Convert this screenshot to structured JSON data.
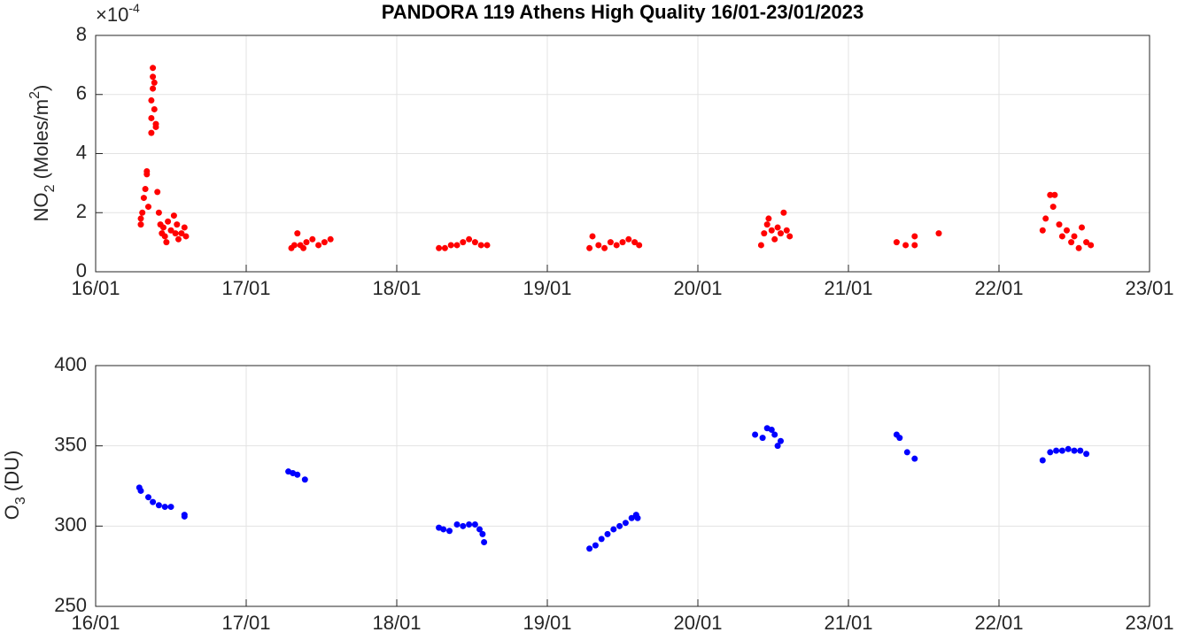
{
  "chart_data": [
    {
      "type": "scatter",
      "title": "PANDORA 119 Athens High Quality 16/01-23/01/2023",
      "multiplier": [
        "×10",
        "-4"
      ],
      "ylabel": [
        "NO",
        "2",
        " (Moles/m",
        "2",
        ")"
      ],
      "color": "#ff0000",
      "grid": true,
      "xlim": [
        16,
        23
      ],
      "xticks": [
        {
          "value": 16,
          "label": "16/01"
        },
        {
          "value": 17,
          "label": "17/01"
        },
        {
          "value": 18,
          "label": "18/01"
        },
        {
          "value": 19,
          "label": "19/01"
        },
        {
          "value": 20,
          "label": "20/01"
        },
        {
          "value": 21,
          "label": "21/01"
        },
        {
          "value": 22,
          "label": "22/01"
        },
        {
          "value": 23,
          "label": "23/01"
        }
      ],
      "ylim": [
        0,
        8
      ],
      "yticks": [
        0,
        2,
        4,
        6,
        8
      ],
      "x": [
        16.3,
        16.3,
        16.31,
        16.32,
        16.33,
        16.34,
        16.34,
        16.35,
        16.37,
        16.37,
        16.37,
        16.38,
        16.38,
        16.38,
        16.39,
        16.39,
        16.4,
        16.4,
        16.41,
        16.42,
        16.43,
        16.44,
        16.45,
        16.46,
        16.47,
        16.48,
        16.5,
        16.52,
        16.53,
        16.54,
        16.55,
        16.57,
        16.59,
        16.6,
        17.3,
        17.32,
        17.34,
        17.36,
        17.38,
        17.4,
        17.44,
        17.48,
        17.52,
        17.56,
        18.28,
        18.32,
        18.36,
        18.4,
        18.44,
        18.48,
        18.52,
        18.56,
        18.6,
        19.28,
        19.3,
        19.34,
        19.38,
        19.42,
        19.46,
        19.5,
        19.54,
        19.58,
        19.61,
        20.42,
        20.44,
        20.46,
        20.47,
        20.49,
        20.51,
        20.53,
        20.55,
        20.57,
        20.59,
        20.61,
        21.32,
        21.38,
        21.44,
        21.44,
        21.6,
        22.29,
        22.31,
        22.34,
        22.36,
        22.37,
        22.4,
        22.42,
        22.45,
        22.48,
        22.5,
        22.53,
        22.55,
        22.58,
        22.61
      ],
      "values": [
        1.6,
        1.8,
        2.0,
        2.5,
        2.8,
        3.3,
        3.4,
        2.2,
        4.7,
        5.2,
        5.8,
        6.2,
        6.6,
        6.9,
        6.4,
        5.5,
        5.0,
        4.9,
        2.7,
        2.0,
        1.6,
        1.3,
        1.5,
        1.2,
        1.0,
        1.7,
        1.4,
        1.9,
        1.3,
        1.6,
        1.1,
        1.3,
        1.5,
        1.2,
        0.8,
        0.9,
        1.3,
        0.9,
        0.8,
        1.0,
        1.1,
        0.9,
        1.0,
        1.1,
        0.8,
        0.8,
        0.9,
        0.9,
        1.0,
        1.1,
        1.0,
        0.9,
        0.9,
        0.8,
        1.2,
        0.9,
        0.8,
        1.0,
        0.9,
        1.0,
        1.1,
        1.0,
        0.9,
        0.9,
        1.3,
        1.6,
        1.8,
        1.4,
        1.1,
        1.5,
        1.3,
        2.0,
        1.4,
        1.2,
        1.0,
        0.9,
        1.2,
        0.9,
        1.3,
        1.4,
        1.8,
        2.6,
        2.2,
        2.6,
        1.6,
        1.2,
        1.4,
        1.0,
        1.2,
        0.8,
        1.5,
        1.0,
        0.9
      ]
    },
    {
      "type": "scatter",
      "ylabel": [
        "O",
        "3",
        " (DU)"
      ],
      "color": "#0000ff",
      "grid": true,
      "xlim": [
        16,
        23
      ],
      "xticks": [
        {
          "value": 16,
          "label": "16/01"
        },
        {
          "value": 17,
          "label": "17/01"
        },
        {
          "value": 18,
          "label": "18/01"
        },
        {
          "value": 19,
          "label": "19/01"
        },
        {
          "value": 20,
          "label": "20/01"
        },
        {
          "value": 21,
          "label": "21/01"
        },
        {
          "value": 22,
          "label": "22/01"
        },
        {
          "value": 23,
          "label": "23/01"
        }
      ],
      "ylim": [
        250,
        400
      ],
      "yticks": [
        250,
        300,
        350,
        400
      ],
      "x": [
        16.29,
        16.3,
        16.35,
        16.38,
        16.42,
        16.46,
        16.5,
        16.59,
        16.59,
        17.28,
        17.31,
        17.34,
        17.39,
        18.28,
        18.31,
        18.35,
        18.4,
        18.44,
        18.48,
        18.52,
        18.55,
        18.57,
        18.58,
        19.28,
        19.32,
        19.36,
        19.4,
        19.44,
        19.48,
        19.52,
        19.56,
        19.59,
        19.6,
        20.38,
        20.43,
        20.46,
        20.49,
        20.51,
        20.53,
        20.55,
        21.32,
        21.34,
        21.39,
        21.44,
        22.29,
        22.34,
        22.38,
        22.42,
        22.46,
        22.5,
        22.54,
        22.58
      ],
      "values": [
        324,
        322,
        318,
        315,
        313,
        312,
        312,
        307,
        306,
        334,
        333,
        332,
        329,
        299,
        298,
        297,
        301,
        300,
        301,
        301,
        298,
        295,
        290,
        286,
        288,
        292,
        295,
        298,
        300,
        302,
        305,
        307,
        305,
        357,
        355,
        361,
        360,
        357,
        350,
        353,
        357,
        355,
        346,
        342,
        341,
        346,
        347,
        347,
        348,
        347,
        347,
        345
      ]
    }
  ]
}
